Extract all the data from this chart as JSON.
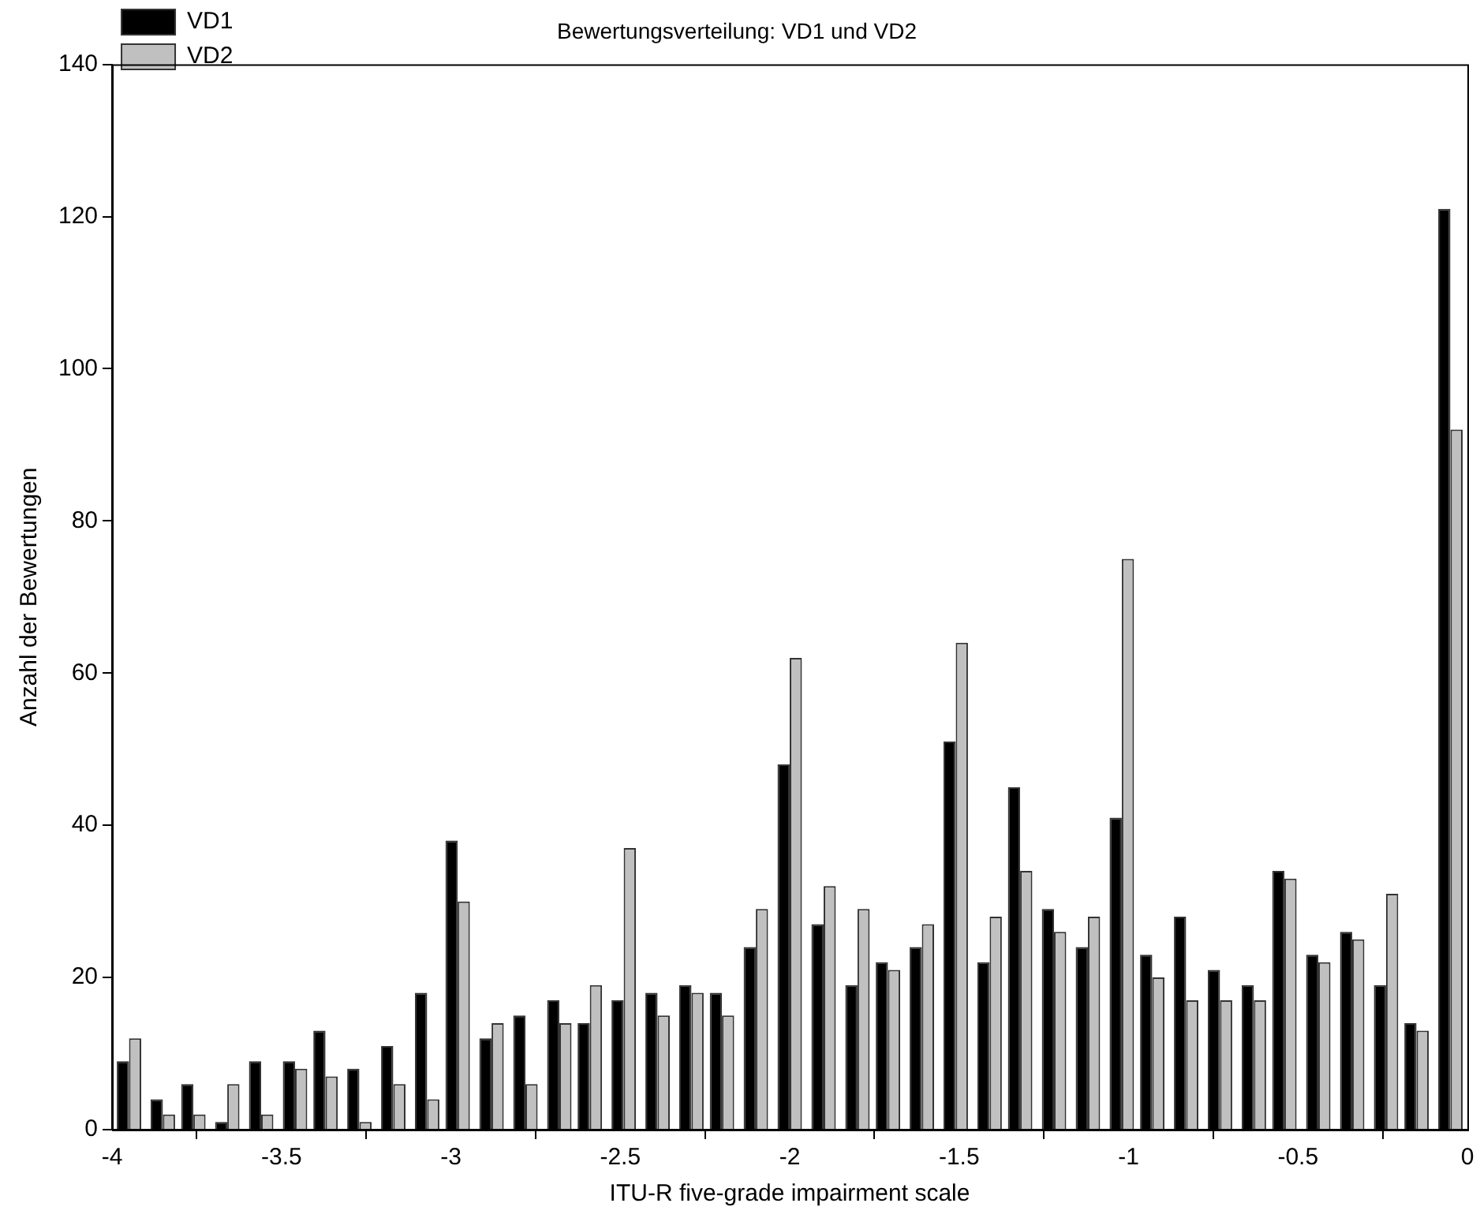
{
  "chart_data": {
    "type": "bar",
    "title": "Bewertungsverteilung: VD1 und VD2",
    "xlabel": "ITU-R five-grade impairment scale",
    "ylabel": "Anzahl der Bewertungen",
    "x": [
      -3.95,
      -3.85,
      -3.76,
      -3.66,
      -3.56,
      -3.46,
      -3.37,
      -3.27,
      -3.17,
      -3.07,
      -2.98,
      -2.88,
      -2.78,
      -2.68,
      -2.59,
      -2.49,
      -2.39,
      -2.29,
      -2.2,
      -2.1,
      -2.0,
      -1.9,
      -1.8,
      -1.71,
      -1.61,
      -1.51,
      -1.41,
      -1.32,
      -1.22,
      -1.12,
      -1.02,
      -0.93,
      -0.83,
      -0.73,
      -0.63,
      -0.54,
      -0.44,
      -0.34,
      -0.24,
      -0.15,
      -0.05
    ],
    "series": [
      {
        "name": "VD1",
        "color": "#000000",
        "values": [
          9,
          4,
          6,
          1,
          9,
          9,
          13,
          8,
          11,
          18,
          38,
          12,
          15,
          17,
          14,
          17,
          18,
          19,
          18,
          24,
          48,
          27,
          19,
          22,
          24,
          51,
          22,
          45,
          29,
          24,
          41,
          23,
          28,
          21,
          19,
          34,
          23,
          26,
          19,
          14,
          121
        ]
      },
      {
        "name": "VD2",
        "color": "#c0c0c0",
        "values": [
          12,
          2,
          2,
          6,
          2,
          8,
          7,
          1,
          6,
          4,
          30,
          14,
          6,
          14,
          19,
          37,
          15,
          18,
          15,
          29,
          62,
          32,
          29,
          21,
          27,
          64,
          28,
          34,
          26,
          28,
          75,
          20,
          17,
          17,
          17,
          33,
          22,
          25,
          31,
          13,
          92
        ]
      }
    ],
    "xlim": [
      -4,
      0
    ],
    "xticks": [
      -4,
      -3.5,
      -3,
      -2.5,
      -2,
      -1.5,
      -1,
      -0.5,
      0
    ],
    "ylim": [
      0,
      140
    ],
    "yticks": [
      0,
      20,
      40,
      60,
      80,
      100,
      120,
      140
    ],
    "grid": false,
    "legend": "top left"
  }
}
